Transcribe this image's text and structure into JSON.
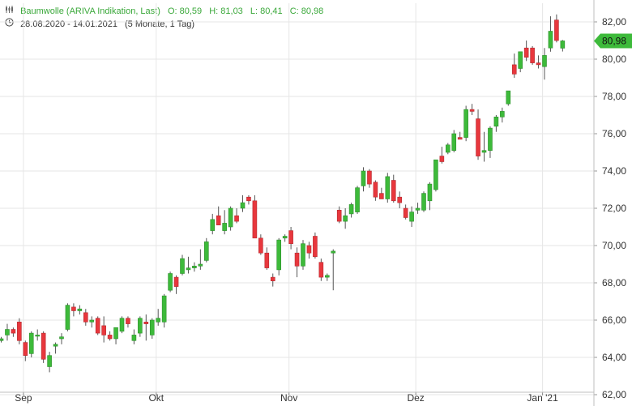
{
  "header": {
    "instrument": "Baumwolle (ARIVA Indikation, Last)",
    "open": "O: 80,59",
    "high": "H: 81,03",
    "low": "L: 80,41",
    "close": "C: 80,98",
    "range": "28.08.2020 - 14.01.2021",
    "period": "(5 Monate, 1 Tag)",
    "chart_icon": "candlestick-icon",
    "time_icon": "clock-icon"
  },
  "colors": {
    "up": "#3dba3a",
    "down": "#e8373d",
    "grid": "#e6e6e6",
    "axis_text": "#333333",
    "last_badge": "#3dba3a"
  },
  "chart_data": {
    "type": "candlestick",
    "title": "Baumwolle (ARIVA Indikation, Last)",
    "ylim": [
      62,
      83
    ],
    "y_ticks": [
      "62,00",
      "64,00",
      "66,00",
      "68,00",
      "70,00",
      "72,00",
      "74,00",
      "76,00",
      "78,00",
      "80,00",
      "82,00"
    ],
    "y_tick_values": [
      62,
      64,
      66,
      68,
      70,
      72,
      74,
      76,
      78,
      80,
      82
    ],
    "x_labels": [
      "Sep",
      "Okt",
      "Nov",
      "Dez",
      "Jan '21"
    ],
    "x_label_index": [
      2,
      24,
      46,
      67,
      88
    ],
    "last_value": "80,98",
    "candles": [
      [
        64.9,
        65.1,
        64.8,
        65.0
      ],
      [
        65.2,
        65.8,
        64.9,
        65.5
      ],
      [
        65.5,
        65.6,
        65.1,
        65.3
      ],
      [
        65.9,
        66.1,
        64.7,
        64.9
      ],
      [
        64.8,
        64.9,
        63.8,
        64.1
      ],
      [
        64.2,
        65.4,
        64.0,
        65.3
      ],
      [
        65.2,
        65.5,
        64.9,
        65.2
      ],
      [
        65.3,
        65.4,
        63.7,
        63.9
      ],
      [
        63.5,
        64.3,
        63.2,
        64.1
      ],
      [
        64.6,
        64.8,
        64.2,
        64.7
      ],
      [
        65.0,
        65.3,
        64.7,
        65.1
      ],
      [
        65.5,
        66.9,
        65.4,
        66.8
      ],
      [
        66.7,
        66.9,
        66.2,
        66.5
      ],
      [
        66.5,
        66.8,
        66.3,
        66.6
      ],
      [
        66.4,
        66.6,
        65.7,
        65.9
      ],
      [
        65.9,
        66.2,
        65.6,
        66.0
      ],
      [
        66.1,
        66.2,
        65.2,
        65.3
      ],
      [
        65.7,
        66.2,
        64.8,
        65.2
      ],
      [
        65.2,
        65.4,
        64.9,
        65.0
      ],
      [
        65.0,
        65.6,
        64.7,
        65.6
      ],
      [
        65.4,
        66.2,
        65.3,
        66.1
      ],
      [
        66.1,
        66.2,
        65.6,
        65.8
      ],
      [
        64.9,
        65.5,
        64.7,
        65.2
      ],
      [
        65.3,
        66.2,
        65.1,
        66.1
      ],
      [
        65.9,
        66.3,
        64.9,
        65.8
      ],
      [
        65.2,
        66.1,
        65.0,
        66.0
      ],
      [
        65.9,
        66.6,
        65.7,
        66.1
      ],
      [
        65.9,
        67.4,
        65.6,
        67.3
      ],
      [
        67.6,
        68.6,
        67.5,
        68.5
      ],
      [
        68.3,
        68.4,
        67.4,
        67.8
      ],
      [
        68.5,
        69.5,
        68.4,
        69.3
      ],
      [
        68.7,
        69.4,
        68.5,
        68.8
      ],
      [
        68.8,
        69.1,
        68.6,
        68.9
      ],
      [
        68.9,
        69.8,
        68.7,
        69.0
      ],
      [
        69.2,
        70.4,
        69.1,
        70.2
      ],
      [
        70.8,
        71.7,
        70.6,
        71.4
      ],
      [
        71.6,
        72.1,
        71.3,
        71.1
      ],
      [
        70.8,
        71.9,
        70.6,
        71.2
      ],
      [
        71.0,
        72.1,
        70.8,
        72.0
      ],
      [
        71.6,
        72.0,
        71.2,
        71.3
      ],
      [
        72.0,
        72.7,
        71.8,
        72.3
      ],
      [
        72.6,
        72.7,
        72.2,
        72.4
      ],
      [
        72.4,
        72.7,
        70.6,
        70.4
      ],
      [
        70.4,
        70.6,
        69.5,
        69.6
      ],
      [
        69.6,
        69.9,
        68.7,
        68.8
      ],
      [
        68.3,
        68.5,
        67.8,
        68.1
      ],
      [
        68.7,
        70.4,
        68.4,
        70.3
      ],
      [
        70.4,
        70.6,
        70.2,
        70.5
      ],
      [
        70.8,
        71.0,
        69.8,
        70.1
      ],
      [
        69.6,
        69.9,
        68.3,
        68.9
      ],
      [
        68.9,
        70.3,
        68.7,
        70.1
      ],
      [
        70.0,
        70.2,
        69.3,
        69.6
      ],
      [
        70.5,
        70.7,
        69.3,
        69.4
      ],
      [
        69.1,
        69.3,
        68.1,
        68.3
      ],
      [
        68.3,
        68.5,
        68.1,
        68.4
      ],
      [
        69.6,
        69.8,
        67.6,
        69.7
      ],
      [
        71.9,
        72.1,
        71.2,
        71.3
      ],
      [
        71.3,
        72.0,
        70.9,
        71.6
      ],
      [
        71.7,
        72.3,
        71.5,
        72.2
      ],
      [
        71.8,
        73.2,
        71.7,
        73.1
      ],
      [
        73.2,
        74.2,
        72.9,
        74.0
      ],
      [
        74.0,
        74.1,
        73.1,
        73.3
      ],
      [
        73.4,
        73.5,
        72.4,
        72.6
      ],
      [
        72.8,
        73.1,
        72.5,
        72.5
      ],
      [
        72.5,
        73.9,
        72.3,
        73.7
      ],
      [
        73.5,
        73.8,
        72.3,
        72.4
      ],
      [
        72.6,
        72.9,
        72.0,
        72.3
      ],
      [
        72.0,
        72.2,
        71.4,
        71.5
      ],
      [
        71.3,
        72.1,
        71.0,
        71.8
      ],
      [
        71.9,
        72.3,
        71.7,
        72.0
      ],
      [
        71.9,
        72.9,
        71.8,
        72.8
      ],
      [
        72.4,
        73.4,
        71.9,
        73.3
      ],
      [
        73.0,
        74.6,
        72.9,
        74.6
      ],
      [
        74.8,
        75.3,
        74.4,
        74.5
      ],
      [
        75.0,
        75.5,
        74.9,
        75.4
      ],
      [
        75.1,
        76.2,
        75.0,
        76.0
      ],
      [
        75.8,
        76.1,
        75.7,
        75.7
      ],
      [
        75.8,
        77.5,
        75.6,
        77.3
      ],
      [
        77.3,
        77.6,
        77.0,
        77.2
      ],
      [
        76.8,
        77.3,
        74.6,
        74.8
      ],
      [
        75.0,
        76.1,
        74.5,
        75.1
      ],
      [
        75.1,
        76.4,
        74.7,
        76.3
      ],
      [
        76.4,
        77.0,
        76.1,
        76.9
      ],
      [
        76.9,
        77.4,
        76.6,
        77.2
      ],
      [
        77.6,
        78.3,
        77.5,
        78.3
      ],
      [
        79.7,
        80.3,
        79.0,
        79.2
      ],
      [
        79.5,
        80.4,
        79.3,
        80.4
      ],
      [
        80.6,
        81.0,
        79.9,
        80.1
      ],
      [
        80.6,
        80.7,
        79.7,
        79.8
      ],
      [
        79.8,
        80.2,
        79.5,
        79.7
      ],
      [
        79.6,
        80.6,
        78.9,
        80.2
      ],
      [
        80.6,
        82.3,
        80.4,
        81.5
      ],
      [
        82.1,
        82.4,
        80.9,
        81.0
      ],
      [
        80.59,
        81.03,
        80.41,
        80.98
      ]
    ]
  }
}
